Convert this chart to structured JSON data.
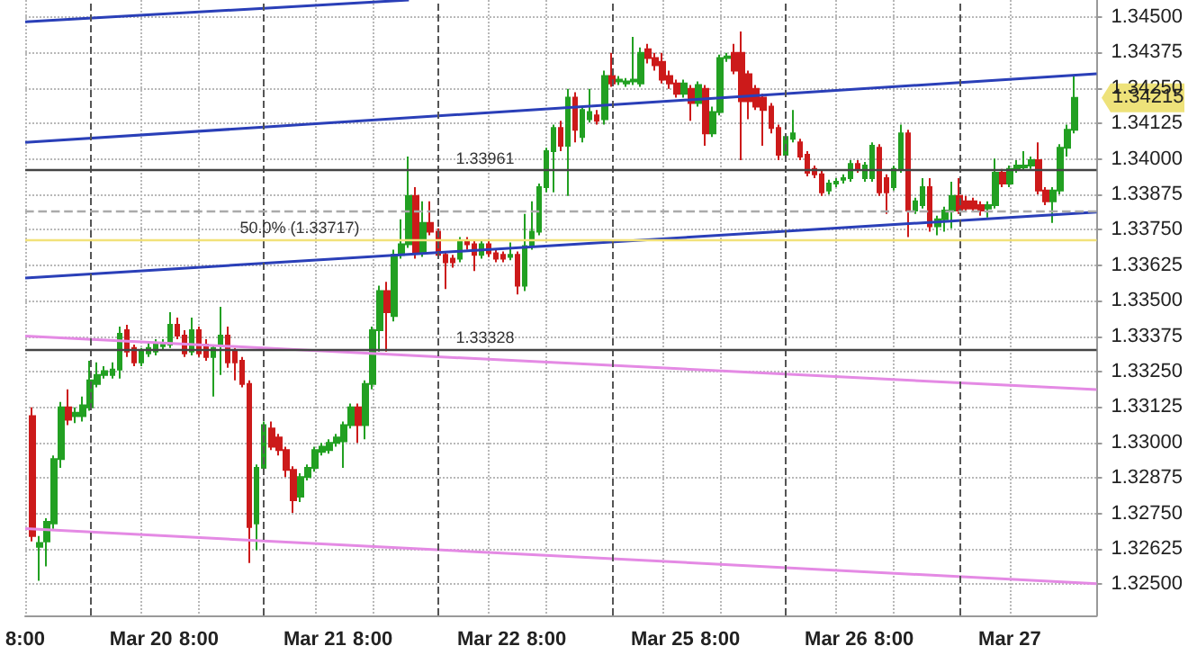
{
  "chart_data": {
    "type": "candlestick",
    "colors": [
      "#22a022",
      "#cc1a1a"
    ],
    "grid": true,
    "categories": [
      "8:00",
      null,
      null,
      null,
      null,
      null,
      null,
      null,
      null,
      null,
      null,
      null,
      null,
      null,
      null,
      null,
      "Mar 20",
      null,
      null,
      null,
      null,
      null,
      null,
      null,
      "8:00",
      null,
      null,
      null,
      null,
      null,
      null,
      null,
      null,
      null,
      null,
      null,
      null,
      null,
      null,
      null,
      "Mar 21",
      null,
      null,
      null,
      null,
      null,
      null,
      null,
      "8:00",
      null,
      null,
      null,
      null,
      null,
      null,
      null,
      null,
      null,
      null,
      null,
      null,
      null,
      null,
      null,
      "Mar 22",
      null,
      null,
      null,
      null,
      null,
      null,
      null,
      "8:00",
      null,
      null,
      null,
      null,
      null,
      null,
      null,
      null,
      null,
      null,
      null,
      null,
      null,
      null,
      null,
      "Mar 25",
      null,
      null,
      null,
      null,
      null,
      null,
      null,
      "8:00",
      null,
      null,
      null,
      null,
      null,
      null,
      null,
      null,
      null,
      null,
      null,
      null,
      null,
      null,
      null,
      "Mar 26",
      null,
      null,
      null,
      null,
      null,
      null,
      null,
      "8:00",
      null,
      null,
      null,
      null,
      null,
      null,
      null,
      null,
      null,
      null,
      null,
      null,
      null,
      null,
      null,
      "Mar 27",
      null,
      null,
      null,
      null,
      null,
      null,
      null,
      null,
      null,
      null,
      null,
      null
    ],
    "ylim": [
      1.3239,
      1.3456
    ],
    "yticks": [
      {
        "value": 1.345,
        "label": "1.34500"
      },
      {
        "value": 1.34375,
        "label": "1.34375"
      },
      {
        "value": 1.3425,
        "label": "1.34250"
      },
      {
        "value": 1.34125,
        "label": "1.34125"
      },
      {
        "value": 1.34,
        "label": "1.34000"
      },
      {
        "value": 1.33875,
        "label": "1.33875"
      },
      {
        "value": 1.3375,
        "label": "1.33750"
      },
      {
        "value": 1.33625,
        "label": "1.33625"
      },
      {
        "value": 1.335,
        "label": "1.33500"
      },
      {
        "value": 1.33375,
        "label": "1.33375"
      },
      {
        "value": 1.3325,
        "label": "1.33250"
      },
      {
        "value": 1.33125,
        "label": "1.33125"
      },
      {
        "value": 1.33,
        "label": "1.33000"
      },
      {
        "value": 1.32875,
        "label": "1.32875"
      },
      {
        "value": 1.3275,
        "label": "1.32750"
      },
      {
        "value": 1.32625,
        "label": "1.32625"
      },
      {
        "value": 1.325,
        "label": "1.32500"
      }
    ],
    "ref_lines": [
      {
        "axis": "y",
        "value": 1.33961,
        "label": "1.33961",
        "color": "#444444",
        "line_style": "solid"
      },
      {
        "axis": "y",
        "value": 1.33328,
        "label": "1.33328",
        "color": "#444444",
        "line_style": "solid"
      },
      {
        "axis": "y",
        "value": 1.33717,
        "label": "50.0% (1.33717)",
        "color": "#f2e27a",
        "line_style": "solid"
      },
      {
        "axis": "y",
        "value": 1.33817,
        "color": "#aaaaaa",
        "line_style": "dashed"
      }
    ],
    "annotations": [
      "1.34215"
    ],
    "series": [
      {
        "ohlc": [
          null,
          [
            1.33093,
            1.33124,
            1.32651,
            1.3267
          ],
          [
            1.32632,
            1.3267,
            1.32512,
            1.32645
          ],
          [
            1.32651,
            1.32733,
            1.32563,
            1.3272
          ],
          [
            1.32714,
            1.32954,
            1.32695,
            1.32941
          ],
          [
            1.32941,
            1.33143,
            1.3291,
            1.33124
          ],
          [
            1.33124,
            1.33187,
            1.33061,
            1.3308
          ],
          [
            1.33093,
            1.33124,
            1.33068,
            1.33105
          ],
          [
            1.33093,
            1.33162,
            1.33074,
            1.33131
          ],
          [
            1.33124,
            1.33288,
            1.33112,
            1.33219
          ],
          [
            1.33206,
            1.33282,
            1.33194,
            1.33238
          ],
          [
            1.33238,
            1.33269,
            1.33225,
            1.33251
          ],
          [
            1.33238,
            1.33282,
            1.33225,
            1.33257
          ],
          [
            1.33257,
            1.33408,
            1.33225,
            1.33383
          ],
          [
            1.33396,
            1.33415,
            1.33301,
            1.3332
          ],
          [
            1.33333,
            1.33345,
            1.33269,
            1.33282
          ],
          [
            1.33282,
            1.33333,
            1.33269,
            1.3332
          ],
          [
            1.33314,
            1.33351,
            1.33301,
            1.33333
          ],
          [
            1.3332,
            1.33364,
            1.33307,
            1.33345
          ],
          [
            1.33339,
            1.33364,
            1.33326,
            1.33345
          ],
          [
            1.33345,
            1.33459,
            1.33333,
            1.33415
          ],
          [
            1.33415,
            1.3344,
            1.33364,
            1.33377
          ],
          [
            1.33377,
            1.33396,
            1.33301,
            1.33314
          ],
          [
            1.3332,
            1.3344,
            1.33307,
            1.33396
          ],
          [
            1.33396,
            1.33408,
            1.33301,
            1.33314
          ],
          [
            1.33345,
            1.33364,
            1.33288,
            1.33301
          ],
          [
            1.33301,
            1.33345,
            1.33162,
            1.33333
          ],
          [
            1.33345,
            1.33478,
            1.33238,
            1.33377
          ],
          [
            1.33377,
            1.33408,
            1.33263,
            1.33282
          ],
          [
            1.3332,
            1.33333,
            1.33219,
            1.33282
          ],
          [
            1.33288,
            1.33301,
            1.33194,
            1.33206
          ],
          [
            1.33206,
            1.33219,
            1.32575,
            1.32702
          ],
          [
            1.32714,
            1.32922,
            1.3262,
            1.3291
          ],
          [
            1.3291,
            1.33074,
            1.32891,
            1.33061
          ],
          [
            1.33049,
            1.33074,
            1.32973,
            1.32985
          ],
          [
            1.33017,
            1.3303,
            1.32954,
            1.32973
          ],
          [
            1.32973,
            1.32985,
            1.32878,
            1.32903
          ],
          [
            1.32903,
            1.32916,
            1.32752,
            1.32796
          ],
          [
            1.32809,
            1.32891,
            1.3279,
            1.32878
          ],
          [
            1.32878,
            1.32922,
            1.32866,
            1.3291
          ],
          [
            1.3291,
            1.32985,
            1.32897,
            1.32973
          ],
          [
            1.32967,
            1.32998,
            1.32954,
            1.32985
          ],
          [
            1.32973,
            1.33011,
            1.3296,
            1.32998
          ],
          [
            1.32998,
            1.3303,
            1.32985,
            1.33017
          ],
          [
            1.33004,
            1.33074,
            1.3291,
            1.33061
          ],
          [
            1.33061,
            1.33137,
            1.33049,
            1.33124
          ],
          [
            1.33124,
            1.33137,
            1.32998,
            1.33061
          ],
          [
            1.33061,
            1.33219,
            1.33011,
            1.33206
          ],
          [
            1.33206,
            1.33408,
            1.33187,
            1.33396
          ],
          [
            1.33396,
            1.33553,
            1.3332,
            1.33534
          ],
          [
            1.33534,
            1.33566,
            1.3332,
            1.33459
          ],
          [
            1.33446,
            1.3368,
            1.33427,
            1.33661
          ],
          [
            1.33661,
            1.33787,
            1.33648,
            1.33699
          ],
          [
            1.33699,
            1.34008,
            1.33686,
            1.33869
          ],
          [
            1.33869,
            1.339,
            1.33648,
            1.33667
          ],
          [
            1.33667,
            1.3385,
            1.33654,
            1.33774
          ],
          [
            1.33774,
            1.3385,
            1.3373,
            1.33743
          ],
          [
            1.33743,
            1.33755,
            1.33648,
            1.33661
          ],
          [
            1.33661,
            1.33673,
            1.33541,
            1.33635
          ],
          [
            1.33648,
            1.33661,
            1.33616,
            1.33635
          ],
          [
            1.33648,
            1.33724,
            1.33635,
            1.33711
          ],
          [
            1.33711,
            1.33724,
            1.3368,
            1.33699
          ],
          [
            1.33699,
            1.33711,
            1.33604,
            1.33661
          ],
          [
            1.33661,
            1.33711,
            1.33648,
            1.33699
          ],
          [
            1.33699,
            1.33711,
            1.33654,
            1.33667
          ],
          [
            1.33667,
            1.3368,
            1.33635,
            1.33648
          ],
          [
            1.33661,
            1.33673,
            1.33635,
            1.33648
          ],
          [
            1.33654,
            1.33705,
            1.33642,
            1.33661
          ],
          [
            1.33661,
            1.33673,
            1.33522,
            1.33553
          ],
          [
            1.33553,
            1.33806,
            1.33534,
            1.33692
          ],
          [
            1.33692,
            1.3385,
            1.3368,
            1.33743
          ],
          [
            1.33743,
            1.33913,
            1.3373,
            1.339
          ],
          [
            1.339,
            1.34039,
            1.33882,
            1.34027
          ],
          [
            1.34027,
            1.34121,
            1.33882,
            1.34109
          ],
          [
            1.34109,
            1.34134,
            1.34027,
            1.34046
          ],
          [
            1.34046,
            1.34247,
            1.33869,
            1.34216
          ],
          [
            1.34216,
            1.34235,
            1.34058,
            1.34102
          ],
          [
            1.34077,
            1.34184,
            1.34058,
            1.34172
          ],
          [
            1.3414,
            1.34247,
            1.34128,
            1.34165
          ],
          [
            1.34153,
            1.34172,
            1.34121,
            1.34134
          ],
          [
            1.3414,
            1.34311,
            1.34121,
            1.34292
          ],
          [
            1.34292,
            1.34374,
            1.34254,
            1.34266
          ],
          [
            1.34273,
            1.34292,
            1.3426,
            1.34279
          ],
          [
            1.34266,
            1.34285,
            1.34254,
            1.34273
          ],
          [
            1.34273,
            1.3443,
            1.3426,
            1.34279
          ],
          [
            1.34266,
            1.34393,
            1.34254,
            1.34374
          ],
          [
            1.34386,
            1.34405,
            1.34336,
            1.34355
          ],
          [
            1.34355,
            1.34374,
            1.34311,
            1.3433
          ],
          [
            1.34342,
            1.34374,
            1.34266,
            1.34279
          ],
          [
            1.34292,
            1.34311,
            1.34247,
            1.34266
          ],
          [
            1.34266,
            1.34279,
            1.34216,
            1.34229
          ],
          [
            1.34229,
            1.34279,
            1.34216,
            1.34266
          ],
          [
            1.34247,
            1.3426,
            1.34134,
            1.34197
          ],
          [
            1.34197,
            1.34273,
            1.34184,
            1.3426
          ],
          [
            1.34247,
            1.3426,
            1.34046,
            1.3409
          ],
          [
            1.3409,
            1.34184,
            1.34077,
            1.34165
          ],
          [
            1.34165,
            1.34367,
            1.34153,
            1.34355
          ],
          [
            1.34355,
            1.34374,
            1.34342,
            1.34361
          ],
          [
            1.34374,
            1.34405,
            1.34298,
            1.34311
          ],
          [
            1.34374,
            1.34449,
            1.33995,
            1.34203
          ],
          [
            1.34298,
            1.34311,
            1.3414,
            1.34203
          ],
          [
            1.34247,
            1.3426,
            1.34172,
            1.34184
          ],
          [
            1.34216,
            1.34229,
            1.34046,
            1.34172
          ],
          [
            1.34184,
            1.34197,
            1.3409,
            1.34109
          ],
          [
            1.34109,
            1.34121,
            1.33995,
            1.34014
          ],
          [
            1.34014,
            1.3409,
            1.34001,
            1.34077
          ],
          [
            1.34071,
            1.34172,
            1.34058,
            1.3409
          ],
          [
            1.34058,
            1.34071,
            1.33995,
            1.34008
          ],
          [
            1.34014,
            1.34027,
            1.33938,
            1.33951
          ],
          [
            1.33964,
            1.33976,
            1.33932,
            1.33945
          ],
          [
            1.33945,
            1.33957,
            1.33869,
            1.33882
          ],
          [
            1.33888,
            1.33926,
            1.33875,
            1.33913
          ],
          [
            1.33913,
            1.33932,
            1.339,
            1.33919
          ],
          [
            1.33926,
            1.33945,
            1.33913,
            1.33932
          ],
          [
            1.33932,
            1.33995,
            1.33919,
            1.33982
          ],
          [
            1.33982,
            1.33995,
            1.33951,
            1.33964
          ],
          [
            1.33932,
            1.33989,
            1.33919,
            1.33976
          ],
          [
            1.33932,
            1.34058,
            1.33919,
            1.34046
          ],
          [
            1.34039,
            1.34052,
            1.33869,
            1.33882
          ],
          [
            1.33932,
            1.33945,
            1.33806,
            1.33882
          ],
          [
            1.339,
            1.33976,
            1.33888,
            1.33964
          ],
          [
            1.33964,
            1.34121,
            1.33951,
            1.3409
          ],
          [
            1.3409,
            1.34102,
            1.33724,
            1.33818
          ],
          [
            1.33818,
            1.33863,
            1.33806,
            1.3385
          ],
          [
            1.33837,
            1.33932,
            1.33825,
            1.339
          ],
          [
            1.339,
            1.33932,
            1.33743,
            1.33762
          ],
          [
            1.33762,
            1.33799,
            1.3373,
            1.33787
          ],
          [
            1.33787,
            1.33831,
            1.33743,
            1.33818
          ],
          [
            1.33818,
            1.33919,
            1.33755,
            1.33869
          ],
          [
            1.33869,
            1.33932,
            1.33806,
            1.33818
          ],
          [
            1.3385,
            1.33869,
            1.33812,
            1.33825
          ],
          [
            1.3385,
            1.33863,
            1.33818,
            1.33825
          ],
          [
            1.33837,
            1.3385,
            1.33799,
            1.33818
          ],
          [
            1.33825,
            1.3385,
            1.33793,
            1.33837
          ],
          [
            1.33837,
            1.34001,
            1.33825,
            1.33951
          ],
          [
            1.33951,
            1.33964,
            1.339,
            1.33913
          ],
          [
            1.33913,
            1.33976,
            1.339,
            1.33964
          ],
          [
            1.33964,
            1.33995,
            1.33951,
            1.33976
          ],
          [
            1.3397,
            1.34027,
            1.33957,
            1.33976
          ],
          [
            1.33976,
            1.34008,
            1.33964,
            1.33995
          ],
          [
            1.33995,
            1.34058,
            1.33875,
            1.33888
          ],
          [
            1.33888,
            1.339,
            1.33837,
            1.3385
          ],
          [
            1.3385,
            1.339,
            1.33774,
            1.33888
          ],
          [
            1.33888,
            1.34052,
            1.33875,
            1.34039
          ],
          [
            1.34039,
            1.34121,
            1.34008,
            1.34102
          ],
          [
            1.34102,
            1.34292,
            1.3409,
            1.34215
          ],
          null,
          null,
          null
        ]
      },
      {
        "type": "line",
        "color": "#2a3fb8",
        "values": [
          1.34483,
          null,
          null,
          null,
          null,
          null,
          null,
          null,
          null,
          null,
          null,
          null,
          null,
          null,
          null,
          null,
          null,
          null,
          null,
          null,
          null,
          null,
          null,
          null,
          null,
          null,
          null,
          null,
          null,
          null,
          null,
          null,
          null,
          null,
          null,
          null,
          null,
          null,
          null,
          null,
          null,
          null,
          null,
          null,
          null,
          null,
          null,
          null,
          null,
          null,
          null,
          null,
          null,
          1.3456,
          null,
          null,
          null,
          null,
          null,
          null,
          null,
          null,
          null,
          null,
          null,
          null,
          null,
          null,
          null,
          null,
          null,
          null,
          null,
          null,
          null,
          null,
          null,
          null,
          null,
          null,
          null,
          null,
          null,
          null,
          null,
          null,
          null,
          null,
          null,
          null,
          null,
          null,
          null,
          null,
          null,
          null,
          null,
          null,
          null,
          null,
          null,
          null,
          null,
          null,
          null,
          null,
          null,
          null,
          null,
          null,
          null,
          null,
          null,
          null,
          null,
          null,
          null,
          null,
          null,
          null,
          null,
          null,
          null,
          null,
          null,
          null,
          null,
          null,
          null,
          null,
          null,
          null,
          null,
          null,
          null,
          null,
          null,
          null,
          null,
          null,
          null,
          null,
          null,
          null,
          null,
          null,
          null,
          null,
          null
        ]
      },
      {
        "type": "line",
        "color": "#2a3fb8",
        "values": [
          1.34058,
          null,
          null,
          null,
          null,
          null,
          null,
          null,
          null,
          null,
          null,
          null,
          null,
          null,
          null,
          null,
          null,
          null,
          null,
          null,
          null,
          null,
          null,
          null,
          null,
          null,
          null,
          null,
          null,
          null,
          null,
          null,
          null,
          null,
          null,
          null,
          null,
          null,
          null,
          null,
          null,
          null,
          null,
          null,
          null,
          null,
          null,
          null,
          null,
          null,
          null,
          null,
          null,
          null,
          null,
          null,
          null,
          null,
          null,
          null,
          null,
          null,
          null,
          null,
          null,
          null,
          null,
          null,
          null,
          null,
          null,
          null,
          null,
          null,
          null,
          null,
          null,
          null,
          null,
          null,
          null,
          null,
          null,
          null,
          null,
          null,
          null,
          null,
          null,
          null,
          null,
          null,
          null,
          null,
          null,
          null,
          null,
          null,
          null,
          null,
          null,
          null,
          null,
          null,
          null,
          null,
          null,
          null,
          null,
          null,
          null,
          null,
          null,
          null,
          null,
          null,
          null,
          null,
          null,
          null,
          null,
          null,
          null,
          null,
          null,
          null,
          null,
          null,
          null,
          null,
          null,
          null,
          null,
          null,
          null,
          null,
          null,
          null,
          null,
          null,
          null,
          null,
          null,
          null,
          null,
          null,
          null,
          null,
          1.343
        ]
      },
      {
        "type": "line",
        "color": "#2a3fb8",
        "values": [
          1.3358,
          null,
          null,
          null,
          null,
          null,
          null,
          null,
          null,
          null,
          null,
          null,
          null,
          null,
          null,
          null,
          null,
          null,
          null,
          null,
          null,
          null,
          null,
          null,
          null,
          null,
          null,
          null,
          null,
          null,
          null,
          null,
          null,
          null,
          null,
          null,
          null,
          null,
          null,
          null,
          null,
          null,
          null,
          null,
          null,
          null,
          null,
          null,
          null,
          null,
          null,
          null,
          null,
          null,
          null,
          null,
          null,
          null,
          null,
          null,
          null,
          null,
          null,
          null,
          null,
          null,
          null,
          null,
          null,
          null,
          null,
          null,
          null,
          null,
          null,
          null,
          null,
          null,
          null,
          null,
          null,
          null,
          null,
          null,
          null,
          null,
          null,
          null,
          null,
          null,
          null,
          null,
          null,
          null,
          null,
          null,
          null,
          null,
          null,
          null,
          null,
          null,
          null,
          null,
          null,
          null,
          null,
          null,
          null,
          null,
          null,
          null,
          null,
          null,
          null,
          null,
          null,
          null,
          null,
          null,
          null,
          null,
          null,
          null,
          null,
          null,
          null,
          null,
          null,
          null,
          null,
          null,
          null,
          null,
          null,
          null,
          null,
          null,
          null,
          null,
          null,
          null,
          null,
          null,
          null,
          null,
          null,
          null,
          1.33812
        ]
      },
      {
        "type": "line",
        "color": "#e48ae4",
        "values": [
          1.33375,
          null,
          null,
          null,
          null,
          null,
          null,
          null,
          null,
          null,
          null,
          null,
          null,
          null,
          null,
          null,
          null,
          null,
          null,
          null,
          null,
          null,
          null,
          null,
          null,
          null,
          null,
          null,
          null,
          null,
          null,
          null,
          null,
          null,
          null,
          null,
          null,
          null,
          null,
          null,
          null,
          null,
          null,
          null,
          null,
          null,
          null,
          null,
          null,
          null,
          null,
          null,
          null,
          null,
          null,
          null,
          null,
          null,
          null,
          null,
          null,
          null,
          null,
          null,
          null,
          null,
          null,
          null,
          null,
          null,
          null,
          null,
          null,
          null,
          null,
          null,
          null,
          null,
          null,
          null,
          null,
          null,
          null,
          null,
          null,
          null,
          null,
          null,
          null,
          null,
          null,
          null,
          null,
          null,
          null,
          null,
          null,
          null,
          null,
          null,
          null,
          null,
          null,
          null,
          null,
          null,
          null,
          null,
          null,
          null,
          null,
          null,
          null,
          null,
          null,
          null,
          null,
          null,
          null,
          null,
          null,
          null,
          null,
          null,
          null,
          null,
          null,
          null,
          null,
          null,
          null,
          null,
          null,
          null,
          null,
          null,
          null,
          null,
          null,
          null,
          null,
          null,
          null,
          null,
          null,
          null,
          null,
          null,
          1.33186
        ]
      },
      {
        "type": "line",
        "color": "#e48ae4",
        "values": [
          1.32696,
          null,
          null,
          null,
          null,
          null,
          null,
          null,
          null,
          null,
          null,
          null,
          null,
          null,
          null,
          null,
          null,
          null,
          null,
          null,
          null,
          null,
          null,
          null,
          null,
          null,
          null,
          null,
          null,
          null,
          null,
          null,
          null,
          null,
          null,
          null,
          null,
          null,
          null,
          null,
          null,
          null,
          null,
          null,
          null,
          null,
          null,
          null,
          null,
          null,
          null,
          null,
          null,
          null,
          null,
          null,
          null,
          null,
          null,
          null,
          null,
          null,
          null,
          null,
          null,
          null,
          null,
          null,
          null,
          null,
          null,
          null,
          null,
          null,
          null,
          null,
          null,
          null,
          null,
          null,
          null,
          null,
          null,
          null,
          null,
          null,
          null,
          null,
          null,
          null,
          null,
          null,
          null,
          null,
          null,
          null,
          null,
          null,
          null,
          null,
          null,
          null,
          null,
          null,
          null,
          null,
          null,
          null,
          null,
          null,
          null,
          null,
          null,
          null,
          null,
          null,
          null,
          null,
          null,
          null,
          null,
          null,
          null,
          null,
          null,
          null,
          null,
          null,
          null,
          null,
          null,
          null,
          null,
          null,
          null,
          null,
          null,
          null,
          null,
          null,
          null,
          null,
          null,
          null,
          null,
          null,
          null,
          null,
          1.32502
        ]
      }
    ]
  }
}
